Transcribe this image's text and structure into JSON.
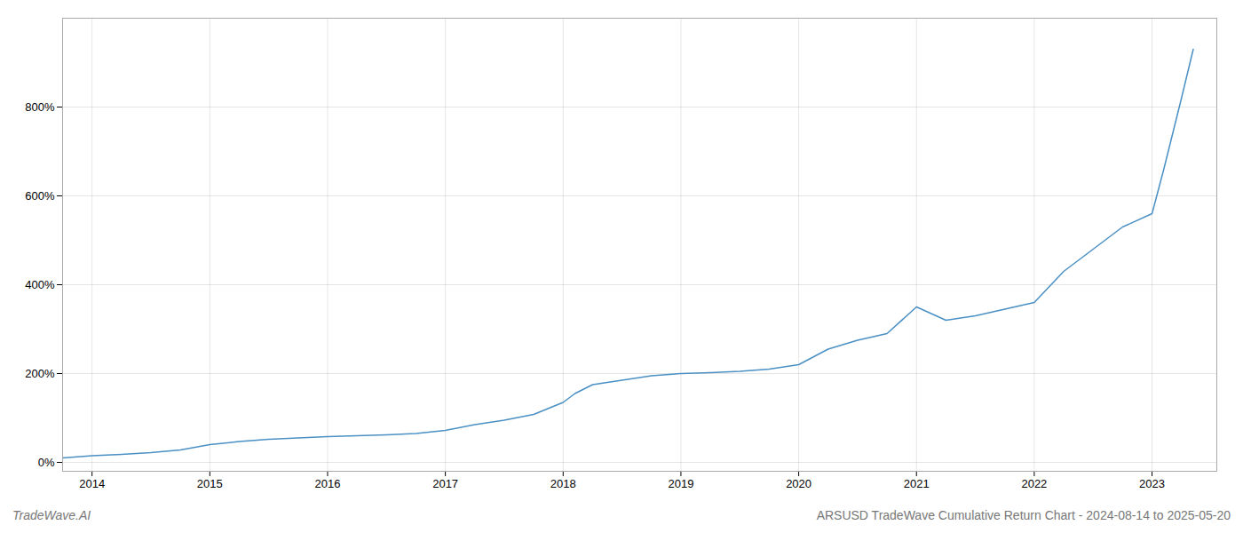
{
  "chart_data": {
    "type": "line",
    "title": "ARSUSD TradeWave Cumulative Return Chart - 2024-08-14 to 2025-05-20",
    "annotations": [
      "TradeWave.AI"
    ],
    "color": "#4a90c4",
    "grid": true,
    "x": [
      2013.75,
      2014.0,
      2014.25,
      2014.5,
      2014.75,
      2015.0,
      2015.25,
      2015.5,
      2015.75,
      2016.0,
      2016.25,
      2016.5,
      2016.75,
      2017.0,
      2017.25,
      2017.5,
      2017.75,
      2018.0,
      2018.1,
      2018.25,
      2018.5,
      2018.75,
      2019.0,
      2019.25,
      2019.5,
      2019.75,
      2020.0,
      2020.25,
      2020.5,
      2020.75,
      2021.0,
      2021.25,
      2021.5,
      2021.75,
      2022.0,
      2022.25,
      2022.5,
      2022.75,
      2023.0,
      2023.1,
      2023.25,
      2023.35
    ],
    "values": [
      10,
      15,
      18,
      22,
      28,
      40,
      47,
      52,
      55,
      58,
      60,
      62,
      65,
      72,
      85,
      95,
      108,
      135,
      155,
      175,
      185,
      195,
      200,
      202,
      205,
      210,
      220,
      255,
      275,
      290,
      350,
      320,
      330,
      345,
      360,
      430,
      480,
      530,
      560,
      660,
      820,
      930
    ],
    "xlim": [
      2013.75,
      2023.55
    ],
    "xticks": [
      2014,
      2015,
      2016,
      2017,
      2018,
      2019,
      2020,
      2021,
      2022,
      2023
    ],
    "ylim": [
      -20,
      1000
    ],
    "yticks": [
      {
        "value": 0,
        "label": "0%"
      },
      {
        "value": 200,
        "label": "200%"
      },
      {
        "value": 400,
        "label": "400%"
      },
      {
        "value": 600,
        "label": "600%"
      },
      {
        "value": 800,
        "label": "800%"
      }
    ]
  }
}
